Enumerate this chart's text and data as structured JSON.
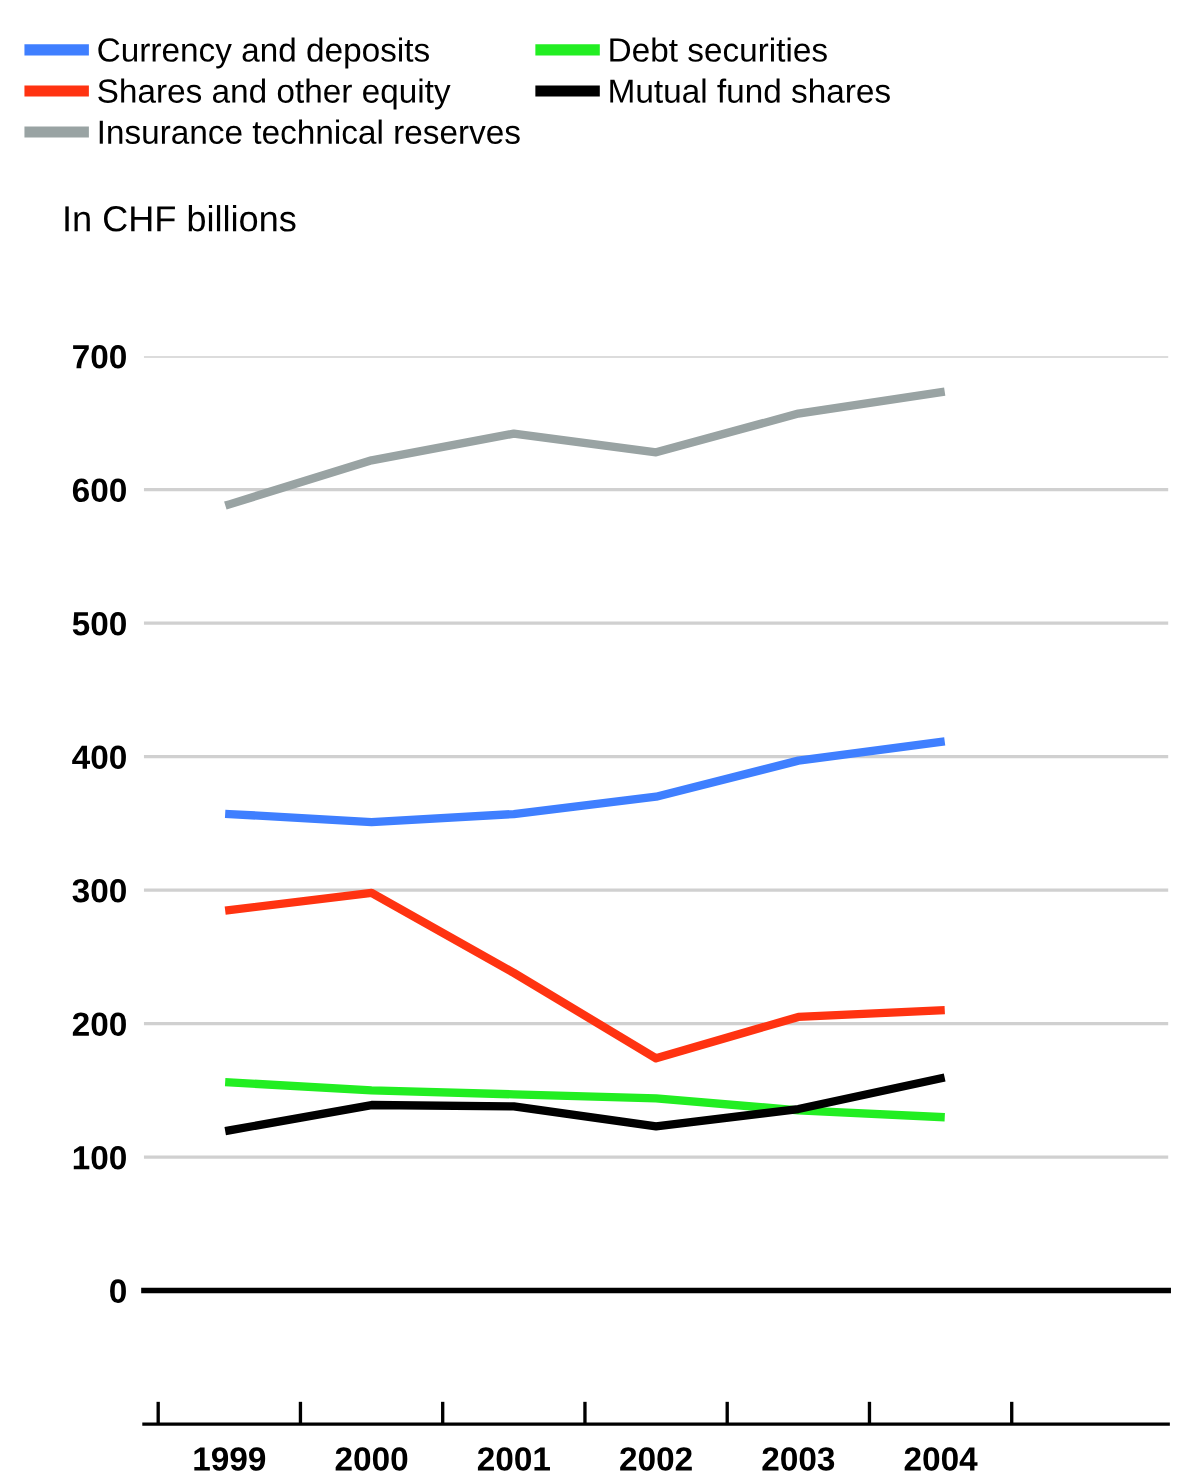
{
  "chart_data": {
    "type": "line",
    "ylabel": "In CHF billions",
    "categories": [
      "1999",
      "2000",
      "2001",
      "2002",
      "2003",
      "2004"
    ],
    "series": [
      {
        "name": "Currency and deposits",
        "color": "#3f7fff",
        "values": [
          357,
          351,
          357,
          370,
          397,
          411
        ]
      },
      {
        "name": "Debt securities",
        "color": "#22ee22",
        "values": [
          156,
          150,
          147,
          144,
          135,
          130
        ]
      },
      {
        "name": "Shares and other equity",
        "color": "#ff3311",
        "values": [
          285,
          298,
          238,
          174,
          205,
          210
        ]
      },
      {
        "name": "Mutual fund shares",
        "color": "#000000",
        "values": [
          120,
          139,
          138,
          123,
          136,
          159
        ]
      },
      {
        "name": "Insurance technical reserves",
        "color": "#99a3a3",
        "values": [
          589,
          622,
          642,
          628,
          657,
          673
        ]
      }
    ],
    "ylim": [
      -100,
      700
    ],
    "yticks": [
      0,
      100,
      200,
      300,
      400,
      500,
      600,
      700
    ],
    "grid": "y",
    "legend": "top",
    "ref_lines": [
      {
        "axis": "y",
        "value": 0,
        "color": "#000000"
      }
    ]
  }
}
